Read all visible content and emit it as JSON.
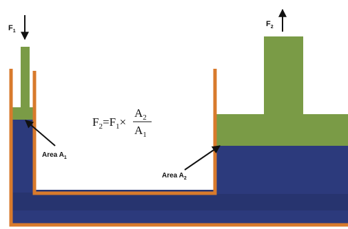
{
  "colors": {
    "fluid_dark": "#2c3a7c",
    "fluid_band": "#27346f",
    "piston_green": "#7a9b46",
    "vessel_orange": "#d87a2c",
    "arrow": "#111111",
    "background": "#ffffff"
  },
  "labels": {
    "force_left": {
      "main": "F",
      "sub": "1"
    },
    "force_right": {
      "main": "F",
      "sub": "2"
    },
    "area_left": {
      "main": "Area A",
      "sub": "1"
    },
    "area_right": {
      "main": "Area A",
      "sub": "2"
    }
  },
  "formula": {
    "lhs_main": "F",
    "lhs_sub": "2",
    "equals": "=",
    "f_main": "F",
    "f_sub": "1",
    "times": "×",
    "num_main": "A",
    "num_sub": "2",
    "den_main": "A",
    "den_sub": "1"
  }
}
